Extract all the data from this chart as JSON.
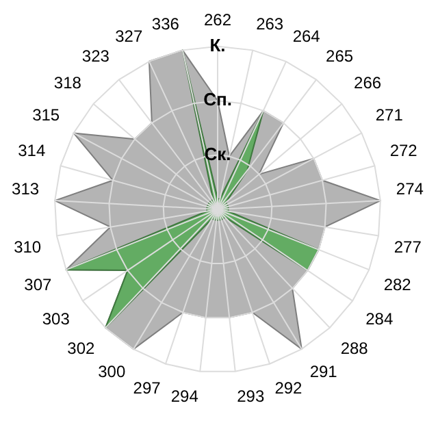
{
  "chart_data": {
    "type": "radar",
    "categories": [
      "262",
      "263",
      "264",
      "265",
      "266",
      "271",
      "272",
      "274",
      "277",
      "282",
      "284",
      "288",
      "291",
      "292",
      "293",
      "294",
      "297",
      "300",
      "302",
      "303",
      "307",
      "310",
      "313",
      "314",
      "315",
      "318",
      "323",
      "327",
      "336"
    ],
    "series": [
      {
        "color": "#b4b4b4",
        "values": [
          2.0,
          1.0,
          2.0,
          2.0,
          1.0,
          2.0,
          2.0,
          3.0,
          2.0,
          2.0,
          2.0,
          2.0,
          3.0,
          2.0,
          2.0,
          2.0,
          2.0,
          3.0,
          3.0,
          2.0,
          3.0,
          2.0,
          3.0,
          2.0,
          3.0,
          2.0,
          2.0,
          3.0,
          3.0
        ]
      },
      {
        "color": "#5aab5a",
        "values": [
          0.2,
          0.2,
          2.0,
          0.9,
          0.2,
          0.2,
          0.2,
          0.2,
          0.2,
          2.0,
          2.0,
          0.2,
          0.2,
          0.2,
          0.2,
          0.2,
          0.2,
          0.2,
          3.0,
          2.0,
          3.0,
          0.2,
          0.2,
          0.2,
          0.2,
          0.2,
          0.2,
          0.2,
          3.0
        ]
      }
    ],
    "ylim": [
      0,
      3
    ],
    "yticks": [
      {
        "value": 1,
        "label": "Ск."
      },
      {
        "value": 2,
        "label": "Сп."
      },
      {
        "value": 3,
        "label": "К."
      }
    ],
    "grid": true,
    "legend": false
  }
}
